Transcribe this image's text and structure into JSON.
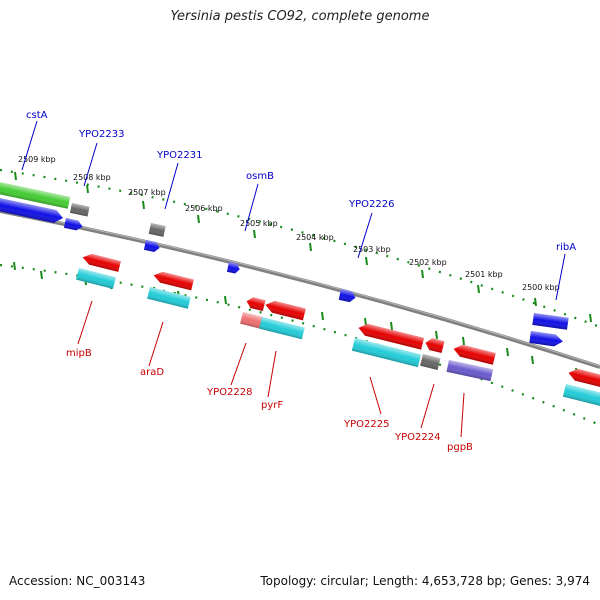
{
  "title": "Yersinia pestis CO92, complete genome",
  "footer": {
    "accession": "Accession: NC_003143",
    "summary": "Topology: circular; Length: 4,653,728 bp; Genes: 3,974"
  },
  "colors": {
    "backbone": "#808080",
    "ticks": "#1a8a1a",
    "blue_gene": "#1010e6",
    "red_gene": "#e60000",
    "cyan_gene": "#22ccd8",
    "green_gene": "#44cc33",
    "gray_gene": "#666666",
    "violet_gene": "#6a5acd",
    "pink_gene": "#ef6f6f",
    "top_label": "#0000c8",
    "bottom_label": "#c80000"
  },
  "scale_labels": [
    "2509 kbp",
    "2508 kbp",
    "2507 kbp",
    "2506 kbp",
    "2505 kbp",
    "2504 kbp",
    "2503 kbp",
    "2502 kbp",
    "2501 kbp",
    "2500 kbp"
  ],
  "top_genes": [
    "cstA",
    "YPO2233",
    "YPO2231",
    "osmB",
    "YPO2226",
    "ribA"
  ],
  "bottom_genes": [
    "mipB",
    "araD",
    "YPO2228",
    "pyrF",
    "YPO2225",
    "YPO2224",
    "pgpB"
  ]
}
